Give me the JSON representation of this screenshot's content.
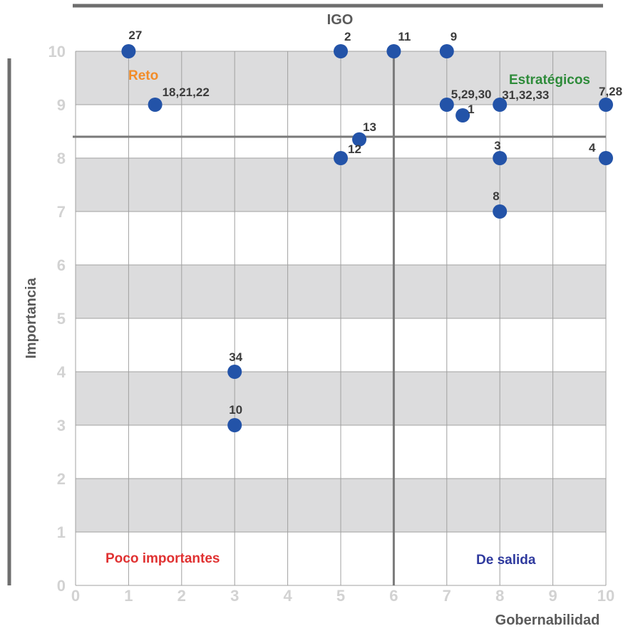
{
  "chart_data": {
    "type": "scatter",
    "title": "IGO",
    "xlabel": "Gobernabilidad",
    "ylabel": "Importancia",
    "xlim": [
      0,
      10
    ],
    "ylim": [
      0,
      10
    ],
    "x_ticks": [
      "0",
      "1",
      "2",
      "3",
      "4",
      "5",
      "6",
      "7",
      "8",
      "9",
      "10"
    ],
    "y_ticks": [
      "0",
      "1",
      "2",
      "3",
      "4",
      "5",
      "6",
      "7",
      "8",
      "9",
      "10"
    ],
    "grid": true,
    "divider_x": 6,
    "divider_y": 8.4,
    "points": [
      {
        "label": "27",
        "x": 1,
        "y": 10
      },
      {
        "label": "18,21,22",
        "x": 1.5,
        "y": 9
      },
      {
        "label": "2",
        "x": 5,
        "y": 10
      },
      {
        "label": "11",
        "x": 6,
        "y": 10
      },
      {
        "label": "9",
        "x": 7,
        "y": 10
      },
      {
        "label": "5,29,30",
        "x": 7,
        "y": 9
      },
      {
        "label": "1",
        "x": 7.3,
        "y": 8.8
      },
      {
        "label": "31,32,33",
        "x": 8,
        "y": 9
      },
      {
        "label": "7,28",
        "x": 10,
        "y": 9
      },
      {
        "label": "13",
        "x": 5.35,
        "y": 8.35
      },
      {
        "label": "12",
        "x": 5,
        "y": 8
      },
      {
        "label": "3",
        "x": 8,
        "y": 8
      },
      {
        "label": "4",
        "x": 10,
        "y": 8
      },
      {
        "label": "8",
        "x": 8,
        "y": 7
      },
      {
        "label": "34",
        "x": 3,
        "y": 4
      },
      {
        "label": "10",
        "x": 3,
        "y": 3
      }
    ],
    "quadrants": [
      {
        "label": "Reto",
        "color": "#f28c28"
      },
      {
        "label": "Estratégicos",
        "color": "#2e8b3a"
      },
      {
        "label": "Poco importantes",
        "color": "#e03131"
      },
      {
        "label": "De salida",
        "color": "#2f3a9e"
      }
    ],
    "colors": {
      "marker": "#2353a8",
      "band": "#dcdcdd",
      "grid": "#a0a0a0",
      "divider": "#7a7a7a"
    }
  }
}
